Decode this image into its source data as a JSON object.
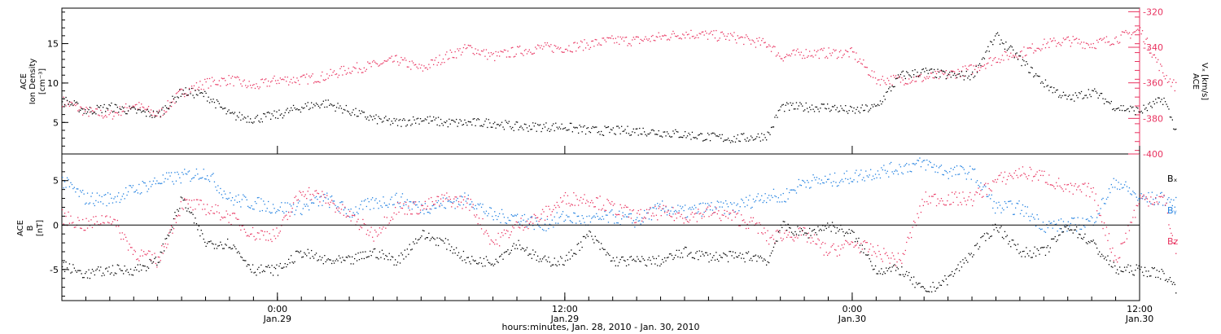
{
  "colors": {
    "black": "#000000",
    "pink": "#e8325f",
    "blue": "#1f7fe0",
    "frame": "#000000"
  },
  "xaxis": {
    "xlabel": "hours:minutes, Jan. 28, 2010 - Jan. 30, 2010",
    "xlim_hours": [
      0,
      45
    ],
    "major_ticks": [
      {
        "hour": 9,
        "time": "0:00",
        "date": "Jan.29"
      },
      {
        "hour": 21,
        "time": "12:00",
        "date": "Jan.29"
      },
      {
        "hour": 33,
        "time": "0:00",
        "date": "Jan.30"
      },
      {
        "hour": 45,
        "time": "12:00",
        "date": "Jan.30"
      }
    ],
    "minor_tick_step_hours": 1
  },
  "chart_data": [
    {
      "type": "scatter",
      "panel": "top",
      "ylabel_left": [
        "ACE",
        "Ion Density",
        "[cm⁻³]"
      ],
      "ylabel_right": [
        "ACE",
        "Vₓ [km/s]"
      ],
      "ylim_left": [
        1,
        19.5
      ],
      "ylim_right": [
        -400,
        -318
      ],
      "yticks_left": [
        5,
        10,
        15
      ],
      "yticks_right": [
        -400,
        -380,
        -360,
        -340,
        -320
      ],
      "series": [
        {
          "color": "#000000",
          "axis": "left",
          "x": [
            0,
            1,
            2,
            3,
            4,
            5,
            6,
            7,
            8,
            9,
            10,
            11,
            12,
            13,
            14,
            15,
            16,
            17,
            18,
            19,
            20,
            21,
            22,
            23,
            24,
            25,
            26,
            27,
            28,
            29,
            29.5,
            30,
            31,
            32,
            33,
            34,
            35,
            36,
            37,
            38,
            39,
            40,
            41,
            42,
            43,
            44,
            45,
            46,
            46.5
          ],
          "y": [
            8,
            6.5,
            7,
            6.5,
            6,
            9,
            8.5,
            6,
            5.5,
            6,
            7,
            7.5,
            6.5,
            5.5,
            5,
            5.5,
            5,
            5,
            5,
            4.5,
            4.5,
            4.5,
            4,
            4,
            4,
            3.8,
            3.5,
            3.2,
            3,
            3.2,
            3.5,
            7,
            7,
            7,
            6.5,
            7,
            11,
            11.5,
            11,
            11,
            16,
            13,
            10,
            8,
            9,
            7,
            6.5,
            8,
            4
          ]
        },
        {
          "color": "#e8325f",
          "axis": "right",
          "x": [
            0,
            1,
            2,
            3,
            4,
            5,
            6,
            7,
            8,
            9,
            10,
            11,
            12,
            13,
            14,
            15,
            16,
            17,
            18,
            19,
            20,
            21,
            22,
            23,
            24,
            25,
            26,
            27,
            28,
            29,
            29.5,
            30,
            31,
            32,
            33,
            34,
            35,
            36,
            37,
            38,
            39,
            40,
            41,
            42,
            43,
            44,
            45,
            46,
            46.5
          ],
          "y": [
            -370,
            -376,
            -378,
            -372,
            -378,
            -365,
            -360,
            -358,
            -362,
            -358,
            -358,
            -356,
            -352,
            -350,
            -347,
            -352,
            -345,
            -340,
            -345,
            -342,
            -340,
            -340,
            -338,
            -336,
            -336,
            -334,
            -332,
            -333,
            -334,
            -337,
            -338,
            -345,
            -343,
            -343,
            -343,
            -358,
            -358,
            -357,
            -355,
            -352,
            -346,
            -343,
            -338,
            -336,
            -338,
            -335,
            -330,
            -355,
            -362
          ]
        }
      ]
    },
    {
      "type": "scatter",
      "panel": "bottom",
      "ylabel_left": [
        "ACE",
        "B",
        "[nT]"
      ],
      "ylim_left": [
        -8.5,
        8
      ],
      "yticks_left": [
        -5,
        0,
        5
      ],
      "zero_line": true,
      "legend": [
        {
          "name": "Bₓ",
          "color": "#000000"
        },
        {
          "name": "Bᵧ",
          "color": "#1f7fe0"
        },
        {
          "name": "Bz",
          "color": "#e8325f"
        }
      ],
      "series": [
        {
          "name": "Bx",
          "color": "#000000",
          "x": [
            0,
            1,
            2,
            3,
            4,
            5,
            6,
            7,
            8,
            9,
            10,
            11,
            12,
            13,
            14,
            15,
            16,
            17,
            18,
            19,
            20,
            21,
            22,
            23,
            24,
            25,
            26,
            27,
            28,
            29,
            29.5,
            30,
            31,
            32,
            33,
            34,
            35,
            36,
            37,
            38,
            39,
            40,
            41,
            42,
            43,
            44,
            45,
            46,
            46.5
          ],
          "y": [
            -4.5,
            -5.5,
            -5,
            -5,
            -4,
            3,
            -2,
            -2,
            -5,
            -5,
            -3,
            -4,
            -4,
            -3,
            -4,
            -1,
            -2,
            -4,
            -4,
            -2,
            -4,
            -4,
            -1,
            -4,
            -4,
            -4,
            -3,
            -3.5,
            -3.5,
            -3.5,
            -4,
            0,
            -1,
            0,
            -1,
            -5,
            -5,
            -7.5,
            -6,
            -3,
            0,
            -3,
            -3,
            0,
            -2,
            -5,
            -5,
            -5.5,
            -7
          ]
        },
        {
          "name": "By",
          "color": "#1f7fe0",
          "x": [
            0,
            1,
            2,
            3,
            4,
            5,
            6,
            7,
            8,
            9,
            10,
            11,
            12,
            13,
            14,
            15,
            16,
            17,
            18,
            19,
            20,
            21,
            22,
            23,
            24,
            25,
            26,
            27,
            28,
            29,
            29.5,
            30,
            31,
            32,
            33,
            34,
            35,
            36,
            37,
            38,
            39,
            40,
            41,
            42,
            43,
            44,
            45,
            46,
            46.5
          ],
          "y": [
            5,
            3,
            3,
            4,
            5,
            5.5,
            6,
            3,
            2.5,
            2,
            2,
            3,
            1.5,
            2.5,
            3,
            2,
            2.5,
            3,
            1,
            1,
            0,
            1,
            0.5,
            1,
            0.5,
            2,
            1.5,
            2,
            2,
            3,
            3.5,
            3,
            5,
            5,
            5.5,
            6,
            6.5,
            7,
            6,
            6,
            2,
            2,
            0,
            0,
            0.5,
            5,
            3,
            3,
            2.5
          ]
        },
        {
          "name": "Bz",
          "color": "#e8325f",
          "x": [
            0,
            1,
            2,
            3,
            4,
            5,
            6,
            7,
            8,
            9,
            10,
            11,
            12,
            13,
            14,
            15,
            16,
            17,
            18,
            19,
            20,
            21,
            22,
            23,
            24,
            25,
            26,
            27,
            28,
            29,
            29.5,
            30,
            31,
            32,
            33,
            34,
            35,
            36,
            37,
            38,
            39,
            40,
            41,
            42,
            43,
            44,
            45,
            46,
            46.5
          ],
          "y": [
            1,
            0,
            1,
            -3,
            -4,
            2.5,
            2,
            1,
            -1,
            -1,
            4,
            3,
            1,
            -1,
            2,
            2,
            3,
            2.5,
            -2,
            0,
            1,
            3,
            3,
            2,
            1,
            1.5,
            1,
            1.5,
            1,
            0,
            -1.5,
            -1,
            -1,
            -3,
            -2,
            -3,
            -4,
            3,
            3,
            3,
            5,
            6,
            5.5,
            4,
            4,
            -4,
            3,
            3,
            -3
          ]
        }
      ]
    }
  ]
}
